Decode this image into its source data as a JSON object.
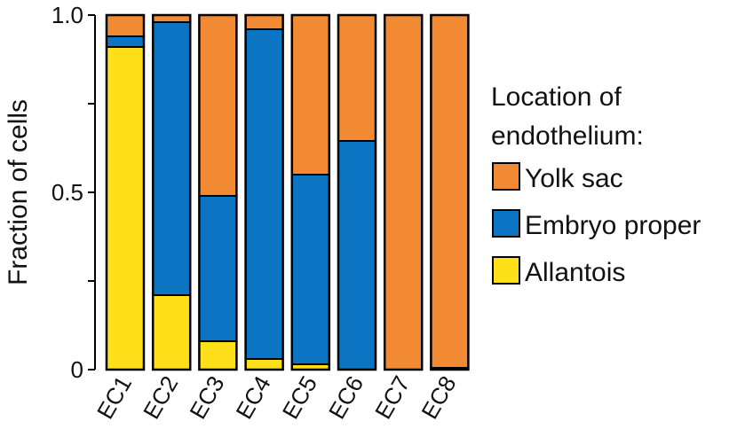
{
  "chart_data": {
    "type": "bar",
    "stacked": true,
    "ylabel": "Fraction of cells",
    "xlabel": "",
    "ylim": [
      0,
      1
    ],
    "y_ticks": [
      {
        "value": 0,
        "label": "0"
      },
      {
        "value": 0.25,
        "label": ""
      },
      {
        "value": 0.5,
        "label": "0.5"
      },
      {
        "value": 0.75,
        "label": ""
      },
      {
        "value": 1.0,
        "label": "1.0"
      }
    ],
    "categories": [
      "EC1",
      "EC2",
      "EC3",
      "EC4",
      "EC5",
      "EC6",
      "EC7",
      "EC8"
    ],
    "series": [
      {
        "name": "Allantois",
        "color": "#fde01a",
        "values": [
          0.91,
          0.21,
          0.08,
          0.03,
          0.015,
          0.0,
          0.0,
          0.0
        ]
      },
      {
        "name": "Embryo proper",
        "color": "#0b75c3",
        "values": [
          0.03,
          0.77,
          0.41,
          0.93,
          0.535,
          0.645,
          0.0,
          0.005
        ]
      },
      {
        "name": "Yolk sac",
        "color": "#f28a34",
        "values": [
          0.06,
          0.02,
          0.51,
          0.04,
          0.45,
          0.355,
          1.0,
          0.995
        ]
      }
    ],
    "legend": {
      "title": "Location of endothelium:",
      "title_lines": [
        "Location of",
        "endothelium:"
      ],
      "order": [
        "Yolk sac",
        "Embryo proper",
        "Allantois"
      ],
      "position": "right"
    }
  }
}
